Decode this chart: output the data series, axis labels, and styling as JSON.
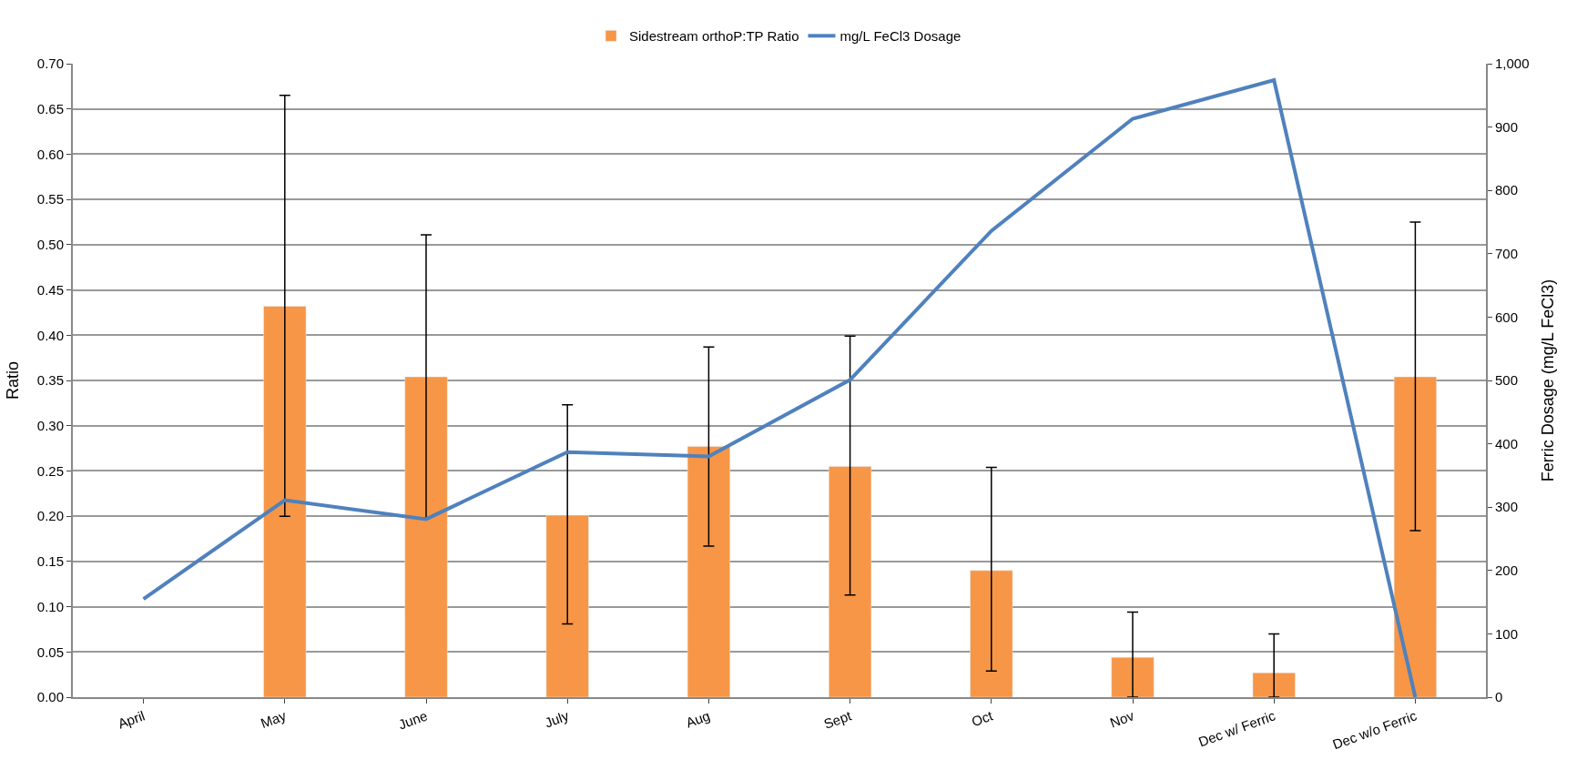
{
  "chart_data": {
    "type": "bar",
    "categories": [
      "April",
      "May",
      "June",
      "July",
      "Aug",
      "Sept",
      "Oct",
      "Nov",
      "Dec w/ Ferric",
      "Dec w/o Ferric"
    ],
    "ylabel": "Ratio",
    "y2label": "Ferric Dosage (mg/L FeCl3)",
    "ylim": [
      0,
      0.7
    ],
    "yticks": [
      {
        "value": 0,
        "label": "0.00"
      },
      {
        "value": 0.05,
        "label": "0.05"
      },
      {
        "value": 0.1,
        "label": "0.10"
      },
      {
        "value": 0.15,
        "label": "0.15"
      },
      {
        "value": 0.2,
        "label": "0.20"
      },
      {
        "value": 0.25,
        "label": "0.25"
      },
      {
        "value": 0.3,
        "label": "0.30"
      },
      {
        "value": 0.35,
        "label": "0.35"
      },
      {
        "value": 0.4,
        "label": "0.40"
      },
      {
        "value": 0.45,
        "label": "0.45"
      },
      {
        "value": 0.5,
        "label": "0.50"
      },
      {
        "value": 0.55,
        "label": "0.55"
      },
      {
        "value": 0.6,
        "label": "0.60"
      },
      {
        "value": 0.65,
        "label": "0.65"
      },
      {
        "value": 0.7,
        "label": "0.70"
      }
    ],
    "y2lim": [
      0,
      1000
    ],
    "y2ticks": [
      0,
      100,
      200,
      300,
      400,
      500,
      600,
      700,
      800,
      900,
      {
        "value": 1000,
        "label": "1,000"
      }
    ],
    "grid": "y",
    "legend": "top",
    "series": [
      {
        "name": "Sidestream orthoP:TP Ratio",
        "color": "#f79646",
        "values": [
          null,
          0.432,
          0.354,
          0.201,
          0.277,
          0.255,
          0.14,
          0.044,
          0.027,
          0.354
        ],
        "errors": [
          null,
          [
            0.2,
            0.665
          ],
          [
            0.198,
            0.511
          ],
          [
            0.081,
            0.323
          ],
          [
            0.167,
            0.387
          ],
          [
            0.113,
            0.399
          ],
          [
            0.029,
            0.254
          ],
          [
            0.0,
            0.094
          ],
          [
            0.0,
            0.07
          ],
          [
            0.184,
            0.525
          ]
        ]
      },
      {
        "name": "mg/L FeCl3 Dosage",
        "type": "line",
        "axis": "y2",
        "color": "#4f81bd",
        "values": [
          155,
          311,
          281,
          387,
          380,
          501,
          736,
          913,
          974,
          0
        ]
      }
    ]
  }
}
